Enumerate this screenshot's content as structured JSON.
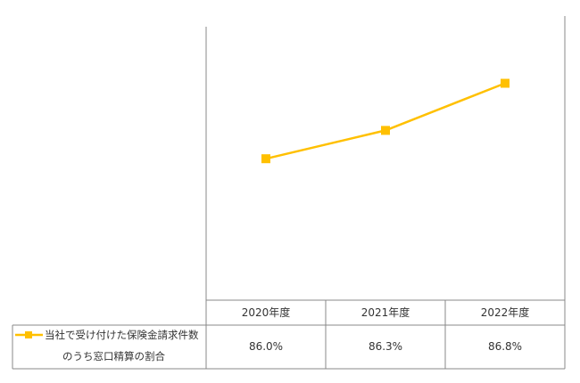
{
  "chart_data": {
    "type": "line",
    "categories": [
      "2020年度",
      "2021年度",
      "2022年度"
    ],
    "series": [
      {
        "name_lines": [
          "当社で受け付けた保険金請求件数",
          "のうち窓口精算の割合"
        ],
        "values": [
          86.0,
          86.3,
          86.8
        ],
        "value_labels": [
          "86.0%",
          "86.3%",
          "86.8%"
        ],
        "color": "#FFC000"
      }
    ],
    "ylim": [
      84.5,
      87.4
    ],
    "grid": false,
    "legend": "data-table-left"
  }
}
